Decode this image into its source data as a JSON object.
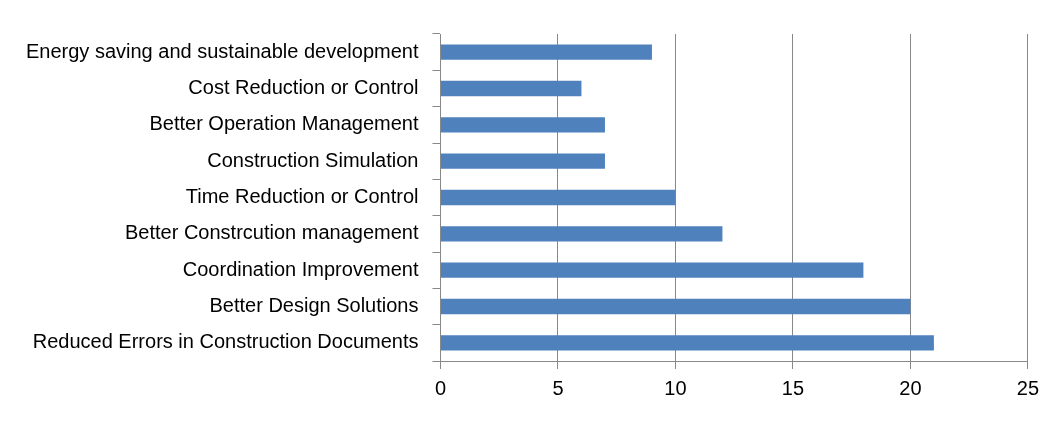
{
  "chart_data": {
    "type": "bar",
    "orientation": "horizontal",
    "categories": [
      "Energy saving and sustainable development",
      "Cost Reduction or Control",
      "Better Operation Management",
      "Construction Simulation",
      "Time Reduction or Control",
      "Better Constrcution management",
      "Coordination Improvement",
      "Better Design Solutions",
      "Reduced Errors in Construction Documents"
    ],
    "values": [
      9,
      6,
      7,
      7,
      10,
      12,
      18,
      20,
      21
    ],
    "color": "#4f81bd",
    "xlim": [
      0,
      25
    ],
    "xticks": [
      0,
      5,
      10,
      15,
      20,
      25
    ],
    "grid": "x",
    "legend": false
  }
}
